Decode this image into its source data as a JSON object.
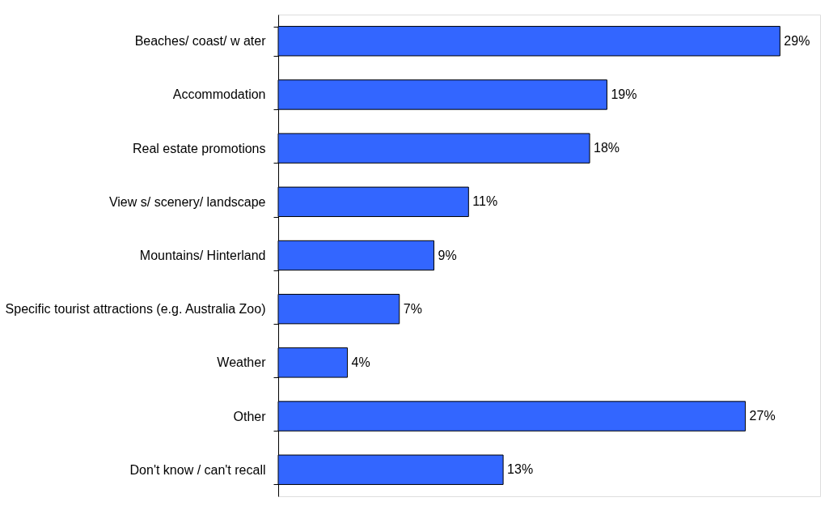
{
  "chart_data": {
    "type": "bar",
    "orientation": "horizontal",
    "categories": [
      "Beaches/ coast/ w ater",
      "Accommodation",
      "Real estate promotions",
      "View s/ scenery/ landscape",
      "Mountains/ Hinterland",
      "Specific tourist attractions (e.g. Australia Zoo)",
      "Weather",
      "Other",
      "Don't know / can't recall"
    ],
    "values": [
      29,
      19,
      18,
      11,
      9,
      7,
      4,
      27,
      13
    ],
    "value_labels": [
      "29%",
      "19%",
      "18%",
      "11%",
      "9%",
      "7%",
      "4%",
      "27%",
      "13%"
    ],
    "color": "#3366ff",
    "grid": false
  }
}
